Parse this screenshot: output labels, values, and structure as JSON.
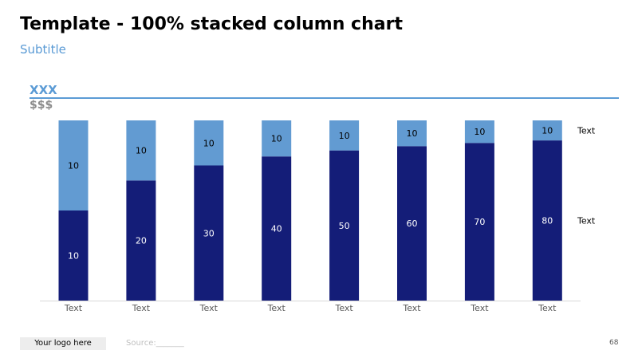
{
  "slide": {
    "title": "Template - 100% stacked column chart",
    "subtitle": "Subtitle",
    "unit_label": "XXX",
    "currency_label": "$$$",
    "logo_text": "Your logo here",
    "source_text": "Source:_______",
    "page_number": "68"
  },
  "colors": {
    "dark_series": "#141d78",
    "light_series": "#629bd2",
    "accent": "#5b9bd5"
  },
  "chart_data": {
    "type": "bar",
    "stacked": "100%",
    "categories": [
      "Text",
      "Text",
      "Text",
      "Text",
      "Text",
      "Text",
      "Text",
      "Text"
    ],
    "series": [
      {
        "name": "Text",
        "values": [
          10,
          20,
          30,
          40,
          50,
          60,
          70,
          80
        ]
      },
      {
        "name": "Text",
        "values": [
          10,
          10,
          10,
          10,
          10,
          10,
          10,
          10
        ]
      }
    ],
    "data_labels": true,
    "legend_placement": "right",
    "ylim": [
      0,
      100
    ],
    "grid": false
  }
}
